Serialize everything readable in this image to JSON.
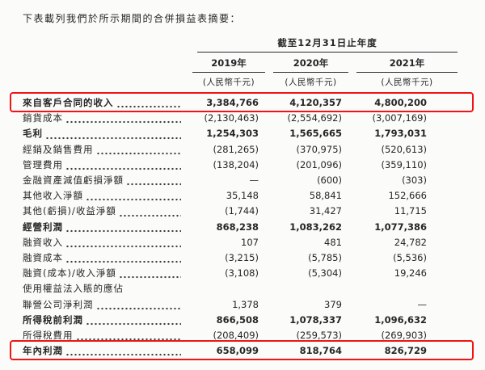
{
  "intro": "下表載列我們於所示期間的合併損益表摘要：",
  "table": {
    "period_header": "截至12月31日止年度",
    "highlight_color": "#f01414",
    "columns": [
      {
        "year": "2019年",
        "unit": "(人民幣千元)"
      },
      {
        "year": "2020年",
        "unit": "(人民幣千元)"
      },
      {
        "year": "2021年",
        "unit": "(人民幣千元)"
      }
    ],
    "rows": [
      {
        "label": "來自客戶合同的收入",
        "leader": true,
        "bold": true,
        "highlight": true,
        "values": [
          "3,384,766",
          "4,120,357",
          "4,800,200"
        ]
      },
      {
        "label": "銷貨成本",
        "leader": true,
        "bold": false,
        "highlight": false,
        "values": [
          "(2,130,463)",
          "(2,554,692)",
          "(3,007,169)"
        ]
      },
      {
        "label": "毛利",
        "leader": true,
        "bold": true,
        "highlight": false,
        "values": [
          "1,254,303",
          "1,565,665",
          "1,793,031"
        ]
      },
      {
        "label": "經銷及銷售費用",
        "leader": true,
        "bold": false,
        "highlight": false,
        "values": [
          "(281,265)",
          "(370,975)",
          "(520,613)"
        ]
      },
      {
        "label": "管理費用",
        "leader": true,
        "bold": false,
        "highlight": false,
        "values": [
          "(138,204)",
          "(201,096)",
          "(359,110)"
        ]
      },
      {
        "label": "金融資產減值虧損淨額",
        "leader": true,
        "bold": false,
        "highlight": false,
        "values": [
          "—",
          "(600)",
          "(303)"
        ]
      },
      {
        "label": "其他收入淨額",
        "leader": true,
        "bold": false,
        "highlight": false,
        "values": [
          "35,148",
          "58,841",
          "152,666"
        ]
      },
      {
        "label": "其他(虧損)/收益淨額",
        "leader": true,
        "bold": false,
        "highlight": false,
        "values": [
          "(1,744)",
          "31,427",
          "11,715"
        ]
      },
      {
        "label": "經營利潤",
        "leader": true,
        "bold": true,
        "highlight": false,
        "values": [
          "868,238",
          "1,083,262",
          "1,077,386"
        ]
      },
      {
        "label": "融資收入",
        "leader": true,
        "bold": false,
        "highlight": false,
        "values": [
          "107",
          "481",
          "24,782"
        ]
      },
      {
        "label": "融資成本",
        "leader": true,
        "bold": false,
        "highlight": false,
        "values": [
          "(3,215)",
          "(5,785)",
          "(5,536)"
        ]
      },
      {
        "label": "融資(成本)/收入淨額",
        "leader": true,
        "bold": false,
        "highlight": false,
        "values": [
          "(3,108)",
          "(5,304)",
          "19,246"
        ]
      },
      {
        "label": "使用權益法入賬的應佔",
        "leader": false,
        "bold": false,
        "highlight": false,
        "values": null
      },
      {
        "label": "聯營公司淨利潤",
        "leader": true,
        "bold": false,
        "highlight": false,
        "values": [
          "1,378",
          "379",
          "—"
        ]
      },
      {
        "label": "所得稅前利潤",
        "leader": true,
        "bold": true,
        "highlight": false,
        "values": [
          "866,508",
          "1,078,337",
          "1,096,632"
        ]
      },
      {
        "label": "所得稅費用",
        "leader": true,
        "bold": false,
        "highlight": false,
        "values": [
          "(208,409)",
          "(259,573)",
          "(269,903)"
        ]
      },
      {
        "label": "年內利潤",
        "leader": true,
        "bold": true,
        "highlight": true,
        "values": [
          "658,099",
          "818,764",
          "826,729"
        ]
      }
    ]
  }
}
